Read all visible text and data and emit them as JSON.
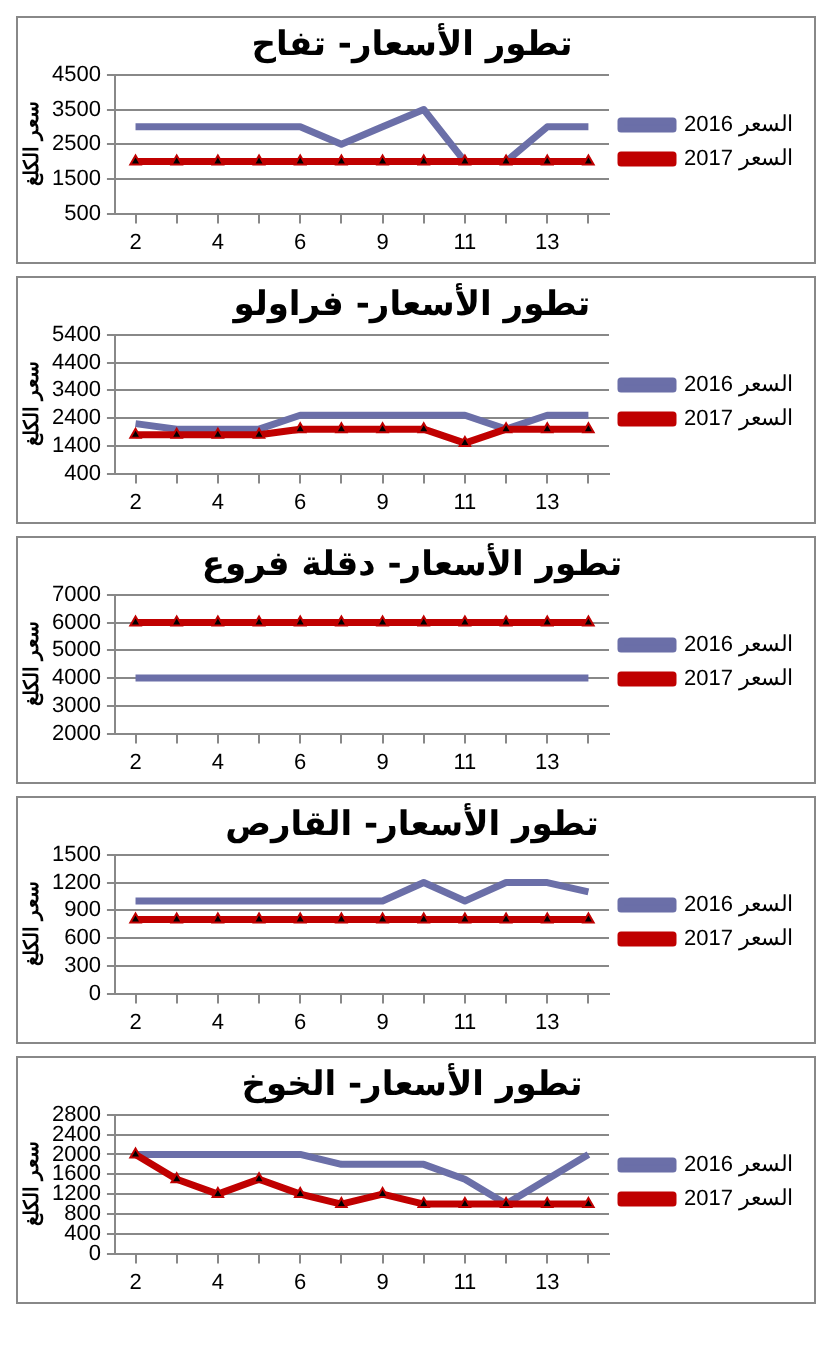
{
  "chart_data": [
    {
      "type": "line",
      "title": "تطور الأسعار- تفاح",
      "ylabel": "سعر الكلغ",
      "categories": [
        "2",
        null,
        "4",
        null,
        "6",
        null,
        "9",
        null,
        "11",
        null,
        "13",
        null
      ],
      "ylim": [
        500,
        4500
      ],
      "yticks": [
        500,
        1500,
        2500,
        3500,
        4500
      ],
      "grid": "y",
      "legend": "right",
      "series": [
        {
          "name": "السعر 2016",
          "color": "#6b6fa8",
          "marker": "none",
          "values": [
            3000,
            3000,
            3000,
            3000,
            3000,
            2500,
            3000,
            3500,
            2000,
            2000,
            3000,
            3000
          ]
        },
        {
          "name": "السعر 2017",
          "color": "#c00000",
          "marker": "triangle",
          "values": [
            2000,
            2000,
            2000,
            2000,
            2000,
            2000,
            2000,
            2000,
            2000,
            2000,
            2000,
            2000
          ]
        }
      ]
    },
    {
      "type": "line",
      "title": "تطور الأسعار- فراولو",
      "ylabel": "سعر الكلغ",
      "categories": [
        "2",
        null,
        "4",
        null,
        "6",
        null,
        "9",
        null,
        "11",
        null,
        "13",
        null
      ],
      "ylim": [
        400,
        5400
      ],
      "yticks": [
        400,
        1400,
        2400,
        3400,
        4400,
        5400
      ],
      "grid": "y",
      "legend": "right",
      "series": [
        {
          "name": "السعر 2016",
          "color": "#6b6fa8",
          "marker": "none",
          "values": [
            2200,
            2000,
            2000,
            2000,
            2500,
            2500,
            2500,
            2500,
            2500,
            2000,
            2500,
            2500
          ]
        },
        {
          "name": "السعر 2017",
          "color": "#c00000",
          "marker": "triangle",
          "values": [
            1800,
            1800,
            1800,
            1800,
            2000,
            2000,
            2000,
            2000,
            1500,
            2000,
            2000,
            2000
          ]
        }
      ]
    },
    {
      "type": "line",
      "title": "تطور الأسعار- دقلة فروع",
      "ylabel": "سعر الكلغ",
      "categories": [
        "2",
        null,
        "4",
        null,
        "6",
        null,
        "9",
        null,
        "11",
        null,
        "13",
        null
      ],
      "ylim": [
        2000,
        7000
      ],
      "yticks": [
        2000,
        3000,
        4000,
        5000,
        6000,
        7000
      ],
      "grid": "y",
      "legend": "right",
      "series": [
        {
          "name": "السعر 2016",
          "color": "#6b6fa8",
          "marker": "none",
          "values": [
            4000,
            4000,
            4000,
            4000,
            4000,
            4000,
            4000,
            4000,
            4000,
            4000,
            4000,
            4000
          ]
        },
        {
          "name": "السعر 2017",
          "color": "#c00000",
          "marker": "triangle",
          "values": [
            6000,
            6000,
            6000,
            6000,
            6000,
            6000,
            6000,
            6000,
            6000,
            6000,
            6000,
            6000
          ]
        }
      ]
    },
    {
      "type": "line",
      "title": "تطور الأسعار- القارص",
      "ylabel": "سعر الكلغ",
      "categories": [
        "2",
        null,
        "4",
        null,
        "6",
        null,
        "9",
        null,
        "11",
        null,
        "13",
        null
      ],
      "ylim": [
        0,
        1500
      ],
      "yticks": [
        0,
        300,
        600,
        900,
        1200,
        1500
      ],
      "grid": "y",
      "legend": "right",
      "series": [
        {
          "name": "السعر 2016",
          "color": "#6b6fa8",
          "marker": "none",
          "values": [
            1000,
            1000,
            1000,
            1000,
            1000,
            1000,
            1000,
            1200,
            1000,
            1200,
            1200,
            1100
          ]
        },
        {
          "name": "السعر 2017",
          "color": "#c00000",
          "marker": "triangle",
          "values": [
            800,
            800,
            800,
            800,
            800,
            800,
            800,
            800,
            800,
            800,
            800,
            800
          ]
        }
      ]
    },
    {
      "type": "line",
      "title": "تطور الأسعار- الخوخ",
      "ylabel": "سعر الكلغ",
      "categories": [
        "2",
        null,
        "4",
        null,
        "6",
        null,
        "9",
        null,
        "11",
        null,
        "13",
        null
      ],
      "ylim": [
        0,
        2800
      ],
      "yticks": [
        0,
        400,
        800,
        1200,
        1600,
        2000,
        2400,
        2800
      ],
      "grid": "y",
      "legend": "right",
      "series": [
        {
          "name": "السعر 2016",
          "color": "#6b6fa8",
          "marker": "none",
          "values": [
            2000,
            2000,
            2000,
            2000,
            2000,
            1800,
            1800,
            1800,
            1500,
            1000,
            1500,
            2000
          ]
        },
        {
          "name": "السعر 2017",
          "color": "#c00000",
          "marker": "triangle",
          "values": [
            2000,
            1500,
            1200,
            1500,
            1200,
            1000,
            1200,
            1000,
            1000,
            1000,
            1000,
            1000
          ]
        }
      ]
    }
  ]
}
